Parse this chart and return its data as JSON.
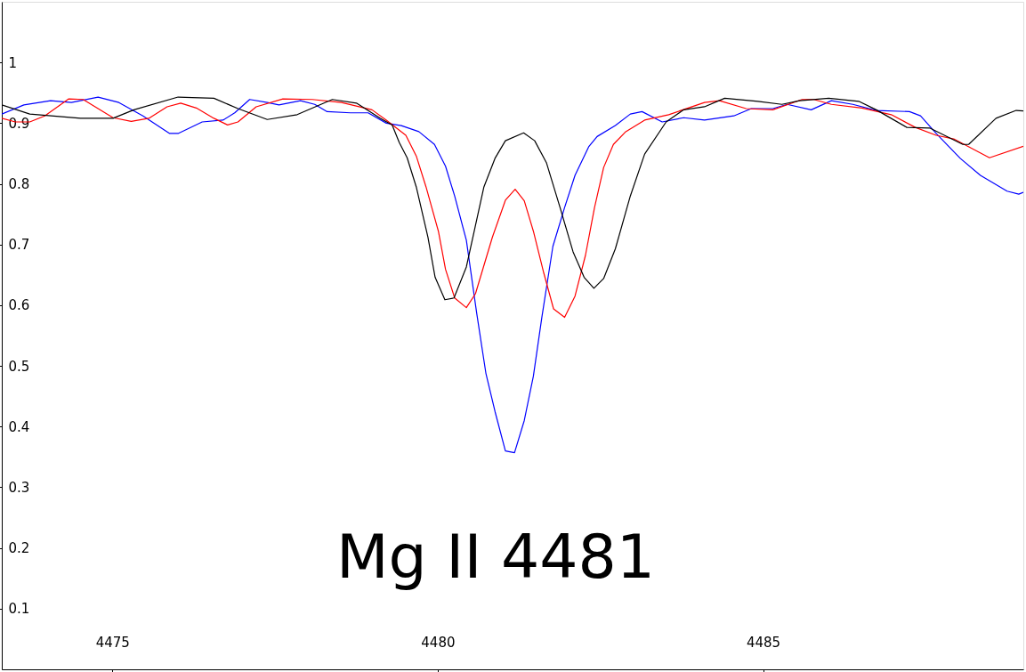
{
  "chart_data": {
    "type": "line",
    "annotations": [
      "Mg II 4481"
    ],
    "xlim": [
      4473.3,
      4489.0
    ],
    "xticks": [
      4475,
      4480,
      4485
    ],
    "ylim": [
      0,
      1.1
    ],
    "yticks": [
      0.1,
      0.2,
      0.3,
      0.4,
      0.5,
      0.6,
      0.7,
      0.8,
      0.9,
      1
    ],
    "grid": false,
    "marker": "none",
    "line_style": "solid",
    "series": [
      {
        "color": "#0000ff",
        "x": [
          4473.3,
          4473.64,
          4474.05,
          4474.37,
          4474.78,
          4475.1,
          4475.47,
          4475.88,
          4476.01,
          4476.38,
          4476.7,
          4476.88,
          4477.11,
          4477.38,
          4477.56,
          4477.89,
          4478.11,
          4478.3,
          4478.66,
          4478.93,
          4479.21,
          4479.44,
          4479.71,
          4479.95,
          4480.12,
          4480.26,
          4480.44,
          4480.6,
          4480.74,
          4480.88,
          4481.04,
          4481.18,
          4481.33,
          4481.47,
          4481.6,
          4481.77,
          4481.95,
          4482.11,
          4482.32,
          4482.45,
          4482.73,
          4482.96,
          4483.14,
          4483.45,
          4483.78,
          4484.1,
          4484.55,
          4484.82,
          4485.15,
          4485.37,
          4485.74,
          4486.05,
          4486.38,
          4486.74,
          4487.25,
          4487.42,
          4487.66,
          4488.03,
          4488.34,
          4488.75,
          4488.93,
          4489.0
        ],
        "values": [
          0.915,
          0.93,
          0.937,
          0.934,
          0.943,
          0.934,
          0.912,
          0.883,
          0.883,
          0.902,
          0.905,
          0.917,
          0.939,
          0.934,
          0.93,
          0.937,
          0.931,
          0.919,
          0.917,
          0.917,
          0.9,
          0.896,
          0.886,
          0.865,
          0.829,
          0.78,
          0.707,
          0.586,
          0.488,
          0.425,
          0.36,
          0.357,
          0.41,
          0.483,
          0.58,
          0.697,
          0.761,
          0.814,
          0.861,
          0.878,
          0.896,
          0.915,
          0.919,
          0.902,
          0.909,
          0.905,
          0.912,
          0.924,
          0.924,
          0.931,
          0.922,
          0.937,
          0.931,
          0.921,
          0.919,
          0.912,
          0.883,
          0.842,
          0.814,
          0.788,
          0.783,
          0.786
        ]
      },
      {
        "color": "#ff0000",
        "x": [
          4473.3,
          4473.51,
          4473.73,
          4473.96,
          4474.33,
          4474.55,
          4474.78,
          4475.01,
          4475.29,
          4475.56,
          4475.84,
          4476.05,
          4476.29,
          4476.56,
          4476.77,
          4476.93,
          4477.21,
          4477.62,
          4478.07,
          4478.52,
          4478.99,
          4479.21,
          4479.51,
          4479.67,
          4479.82,
          4480.01,
          4480.12,
          4480.26,
          4480.44,
          4480.58,
          4480.84,
          4481.04,
          4481.19,
          4481.33,
          4481.47,
          4481.63,
          4481.78,
          4481.95,
          4482.11,
          4482.27,
          4482.41,
          4482.55,
          4482.7,
          4482.89,
          4483.18,
          4483.55,
          4484.1,
          4484.33,
          4484.74,
          4485.15,
          4485.6,
          4485.78,
          4486.05,
          4486.52,
          4486.97,
          4487.34,
          4487.66,
          4487.93,
          4488.48,
          4489.0
        ],
        "values": [
          0.908,
          0.902,
          0.902,
          0.912,
          0.94,
          0.939,
          0.924,
          0.909,
          0.903,
          0.908,
          0.927,
          0.933,
          0.925,
          0.908,
          0.897,
          0.902,
          0.927,
          0.94,
          0.939,
          0.934,
          0.922,
          0.905,
          0.88,
          0.846,
          0.795,
          0.722,
          0.659,
          0.612,
          0.596,
          0.619,
          0.712,
          0.773,
          0.791,
          0.772,
          0.722,
          0.653,
          0.594,
          0.58,
          0.615,
          0.682,
          0.761,
          0.827,
          0.865,
          0.886,
          0.905,
          0.914,
          0.934,
          0.937,
          0.924,
          0.922,
          0.939,
          0.939,
          0.931,
          0.925,
          0.914,
          0.893,
          0.88,
          0.874,
          0.843,
          0.862
        ]
      },
      {
        "color": "#000000",
        "x": [
          4473.3,
          4473.73,
          4474.51,
          4475.01,
          4475.33,
          4476.01,
          4476.56,
          4476.93,
          4477.38,
          4477.84,
          4478.38,
          4478.75,
          4479.12,
          4479.3,
          4479.41,
          4479.53,
          4479.67,
          4479.85,
          4479.96,
          4480.11,
          4480.25,
          4480.44,
          4480.71,
          4480.88,
          4481.04,
          4481.32,
          4481.49,
          4481.67,
          4481.88,
          4482.08,
          4482.25,
          4482.4,
          4482.55,
          4482.73,
          4482.96,
          4483.18,
          4483.51,
          4483.78,
          4484.1,
          4484.41,
          4484.92,
          4485.29,
          4485.56,
          4486.01,
          4486.47,
          4486.74,
          4487.21,
          4487.56,
          4488.07,
          4488.16,
          4488.58,
          4488.89,
          4489.0
        ],
        "values": [
          0.93,
          0.915,
          0.908,
          0.908,
          0.922,
          0.943,
          0.941,
          0.924,
          0.906,
          0.914,
          0.939,
          0.933,
          0.908,
          0.897,
          0.868,
          0.843,
          0.795,
          0.712,
          0.646,
          0.609,
          0.612,
          0.663,
          0.795,
          0.842,
          0.871,
          0.884,
          0.871,
          0.835,
          0.761,
          0.688,
          0.646,
          0.628,
          0.644,
          0.693,
          0.78,
          0.849,
          0.902,
          0.922,
          0.927,
          0.941,
          0.936,
          0.931,
          0.937,
          0.941,
          0.936,
          0.922,
          0.893,
          0.892,
          0.865,
          0.865,
          0.908,
          0.921,
          0.92
        ]
      }
    ]
  }
}
